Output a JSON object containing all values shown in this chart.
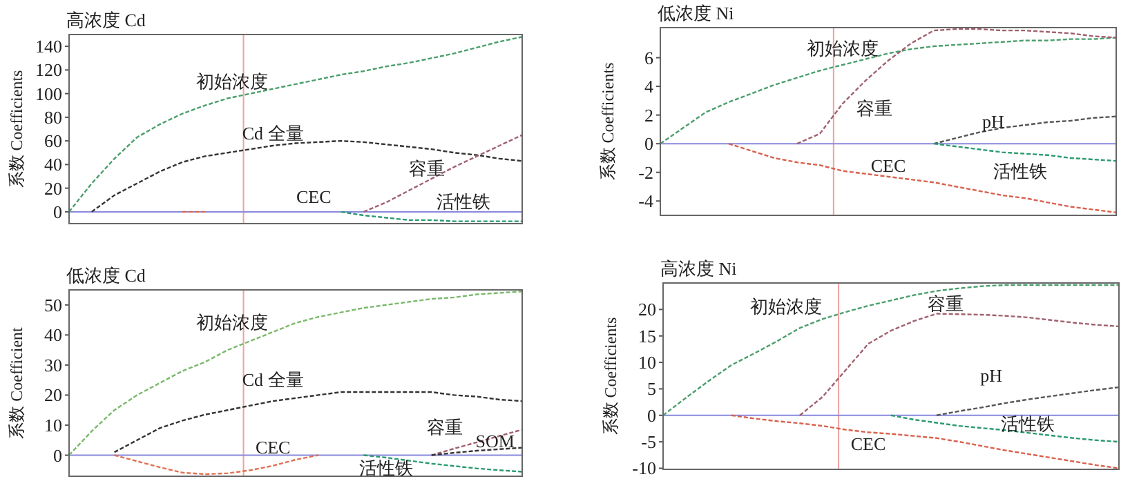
{
  "chart_data": [
    {
      "type": "line",
      "title": "高浓度 Cd",
      "ylabel": "系数 Coefficients",
      "categories": [
        null,
        null,
        null,
        null,
        null,
        null,
        null,
        null,
        null,
        null,
        null,
        null,
        null,
        null,
        null,
        null,
        null,
        null,
        null,
        null,
        null
      ],
      "ylim": [
        -10,
        150
      ],
      "yticks": [
        0,
        20,
        40,
        60,
        80,
        100,
        120,
        140
      ],
      "tick_labels": "y",
      "line_style": "dashed",
      "series": [
        {
          "color": "#4a9e6c",
          "values": [
            0,
            24,
            45,
            63,
            74,
            83,
            90,
            96,
            100,
            104,
            108,
            112,
            116,
            119,
            123,
            126,
            130,
            134,
            139,
            144,
            148
          ]
        },
        {
          "color": "#333333",
          "values": [
            null,
            0,
            14,
            24,
            34,
            42,
            47,
            50,
            53,
            56,
            58,
            59,
            60,
            59,
            57,
            55,
            53,
            50,
            48,
            45,
            43
          ]
        },
        {
          "color": "#a0606e",
          "values": [
            null,
            null,
            null,
            null,
            null,
            null,
            null,
            null,
            null,
            null,
            null,
            null,
            null,
            0,
            8,
            18,
            28,
            38,
            47,
            56,
            65
          ]
        },
        {
          "color": "#2a9a6e",
          "values": [
            null,
            null,
            null,
            null,
            null,
            null,
            null,
            null,
            null,
            null,
            null,
            null,
            0,
            -3,
            -5,
            -7,
            -7,
            -8,
            -8,
            -8,
            -8
          ]
        },
        {
          "color": "#d9604c",
          "values": [
            null,
            null,
            null,
            null,
            null,
            0,
            0,
            null,
            null,
            null,
            null,
            null,
            null,
            null,
            null,
            null,
            null,
            null,
            null,
            null,
            null
          ]
        }
      ],
      "ref_lines": [
        {
          "axis": "y",
          "value": 0,
          "color": "#8888dd"
        }
      ],
      "annotations": [
        "初始浓度",
        "Cd 全量",
        "CEC",
        "容重",
        "活性铁"
      ]
    },
    {
      "type": "line",
      "title": "低浓度 Ni",
      "ylabel": "系数 Coefficients",
      "categories": [
        null,
        null,
        null,
        null,
        null,
        null,
        null,
        null,
        null,
        null,
        null,
        null,
        null,
        null,
        null,
        null,
        null,
        null,
        null,
        null,
        null
      ],
      "ylim": [
        -5,
        8.1
      ],
      "yticks": [
        -4,
        -2,
        0,
        2,
        4,
        6
      ],
      "tick_labels": "y",
      "line_style": "dashed",
      "series": [
        {
          "color": "#4a9e6c",
          "values": [
            0,
            1.1,
            2.2,
            2.9,
            3.5,
            4.1,
            4.6,
            5.1,
            5.5,
            5.9,
            6.3,
            6.6,
            6.8,
            6.9,
            7.0,
            7.1,
            7.2,
            7.2,
            7.3,
            7.3,
            7.4
          ]
        },
        {
          "color": "#a0606e",
          "values": [
            null,
            null,
            null,
            null,
            null,
            null,
            0,
            0.7,
            2.8,
            4.4,
            5.8,
            7.0,
            7.9,
            8.0,
            8.0,
            7.9,
            7.9,
            7.8,
            7.7,
            7.5,
            7.4
          ]
        },
        {
          "color": "#555555",
          "values": [
            null,
            null,
            null,
            null,
            null,
            null,
            null,
            null,
            null,
            null,
            null,
            null,
            0,
            0.4,
            0.8,
            1.1,
            1.3,
            1.5,
            1.6,
            1.8,
            1.9
          ]
        },
        {
          "color": "#2a9a6e",
          "values": [
            null,
            null,
            null,
            null,
            null,
            null,
            null,
            null,
            null,
            null,
            null,
            null,
            0,
            -0.2,
            -0.4,
            -0.6,
            -0.7,
            -0.8,
            -1.0,
            -1.1,
            -1.2
          ]
        },
        {
          "color": "#d9604c",
          "values": [
            null,
            null,
            null,
            0,
            -0.5,
            -1.0,
            -1.3,
            -1.5,
            -1.9,
            -2.1,
            -2.3,
            -2.5,
            -2.7,
            -3.0,
            -3.3,
            -3.6,
            -3.8,
            -4.1,
            -4.4,
            -4.6,
            -4.8
          ]
        }
      ],
      "ref_lines": [
        {
          "axis": "y",
          "value": 0,
          "color": "#8888dd"
        }
      ],
      "annotations": [
        "初始浓度",
        "容重",
        "pH",
        "CEC",
        "活性铁"
      ]
    },
    {
      "type": "line",
      "title": "低浓度 Cd",
      "ylabel": "系数 Coefficient",
      "categories": [
        null,
        null,
        null,
        null,
        null,
        null,
        null,
        null,
        null,
        null,
        null,
        null,
        null,
        null,
        null,
        null,
        null,
        null,
        null,
        null,
        null
      ],
      "ylim": [
        -7,
        55
      ],
      "yticks": [
        0,
        10,
        20,
        30,
        40,
        50
      ],
      "tick_labels": "y",
      "line_style": "dashed",
      "series": [
        {
          "color": "#7ab86a",
          "values": [
            0,
            8,
            15,
            20,
            24,
            28,
            31,
            35,
            38,
            41,
            44,
            46,
            47.5,
            49,
            50,
            51,
            52,
            52.5,
            53.5,
            54,
            54.5
          ]
        },
        {
          "color": "#333333",
          "values": [
            null,
            null,
            1,
            5,
            9,
            11.5,
            13.5,
            15,
            16.5,
            18,
            19,
            20,
            21,
            21,
            21,
            21,
            21,
            20,
            19.5,
            18.5,
            18
          ]
        },
        {
          "color": "#e07050",
          "values": [
            null,
            null,
            0,
            -2,
            -4,
            -5.8,
            -6.3,
            -6,
            -5,
            -3.5,
            -1.5,
            0,
            null,
            null,
            null,
            null,
            null,
            null,
            null,
            null,
            null
          ]
        },
        {
          "color": "#2a9a6e",
          "values": [
            null,
            null,
            null,
            null,
            null,
            null,
            null,
            null,
            null,
            null,
            null,
            null,
            null,
            0,
            -0.8,
            -1.8,
            -2.8,
            -3.6,
            -4.4,
            -5,
            -5.5
          ]
        },
        {
          "color": "#a0606e",
          "values": [
            null,
            null,
            null,
            null,
            null,
            null,
            null,
            null,
            null,
            null,
            null,
            null,
            null,
            null,
            null,
            null,
            0,
            2.2,
            4.3,
            6.4,
            8.5
          ]
        },
        {
          "color": "#333333",
          "values": [
            null,
            null,
            null,
            null,
            null,
            null,
            null,
            null,
            null,
            null,
            null,
            null,
            null,
            null,
            null,
            null,
            0,
            0.8,
            1.5,
            2.0,
            2.5
          ]
        }
      ],
      "ref_lines": [
        {
          "axis": "y",
          "value": 0,
          "color": "#8888dd"
        }
      ],
      "annotations": [
        "初始浓度",
        "Cd 全量",
        "CEC",
        "容重",
        "SOM",
        "活性铁"
      ]
    },
    {
      "type": "line",
      "title": "高浓度 Ni",
      "ylabel": "系数 Coefficients",
      "categories": [
        null,
        null,
        null,
        null,
        null,
        null,
        null,
        null,
        null,
        null,
        null,
        null,
        null,
        null,
        null,
        null,
        null,
        null,
        null,
        null,
        null
      ],
      "ylim": [
        -10.2,
        25
      ],
      "yticks": [
        -10,
        -5,
        0,
        5,
        10,
        15,
        20
      ],
      "tick_labels": "y",
      "line_style": "dashed",
      "series": [
        {
          "color": "#4a9e6c",
          "values": [
            0,
            3.3,
            6.5,
            9.5,
            11.7,
            14,
            16.5,
            18.2,
            19.5,
            20.7,
            21.7,
            22.7,
            23.5,
            24,
            24.4,
            24.6,
            24.6,
            24.6,
            24.6,
            24.6,
            24.6
          ]
        },
        {
          "color": "#a0606e",
          "values": [
            null,
            null,
            null,
            null,
            null,
            null,
            0,
            3.5,
            8.5,
            13.5,
            16,
            17.8,
            19.2,
            19.1,
            19,
            18.8,
            18.5,
            18,
            17.5,
            17.1,
            16.8
          ]
        },
        {
          "color": "#555555",
          "values": [
            null,
            null,
            null,
            null,
            null,
            null,
            null,
            null,
            null,
            null,
            null,
            null,
            0,
            0.8,
            1.5,
            2.3,
            3.0,
            3.6,
            4.2,
            4.8,
            5.3
          ]
        },
        {
          "color": "#2a9a6e",
          "values": [
            null,
            null,
            null,
            null,
            null,
            null,
            null,
            null,
            null,
            null,
            0,
            -0.8,
            -1.4,
            -2,
            -2.4,
            -2.8,
            -3.3,
            -3.8,
            -4.3,
            -4.7,
            -5
          ]
        },
        {
          "color": "#d9604c",
          "values": [
            null,
            null,
            null,
            0,
            -0.6,
            -1.1,
            -1.5,
            -2.0,
            -2.7,
            -3.2,
            -3.5,
            -3.9,
            -4.3,
            -5.0,
            -5.8,
            -6.6,
            -7.3,
            -8.0,
            -8.7,
            -9.4,
            -10
          ]
        }
      ],
      "ref_lines": [
        {
          "axis": "y",
          "value": 0,
          "color": "#8888dd"
        }
      ],
      "annotations": [
        "初始浓度",
        "容重",
        "pH",
        "活性铁",
        "CEC"
      ]
    }
  ]
}
